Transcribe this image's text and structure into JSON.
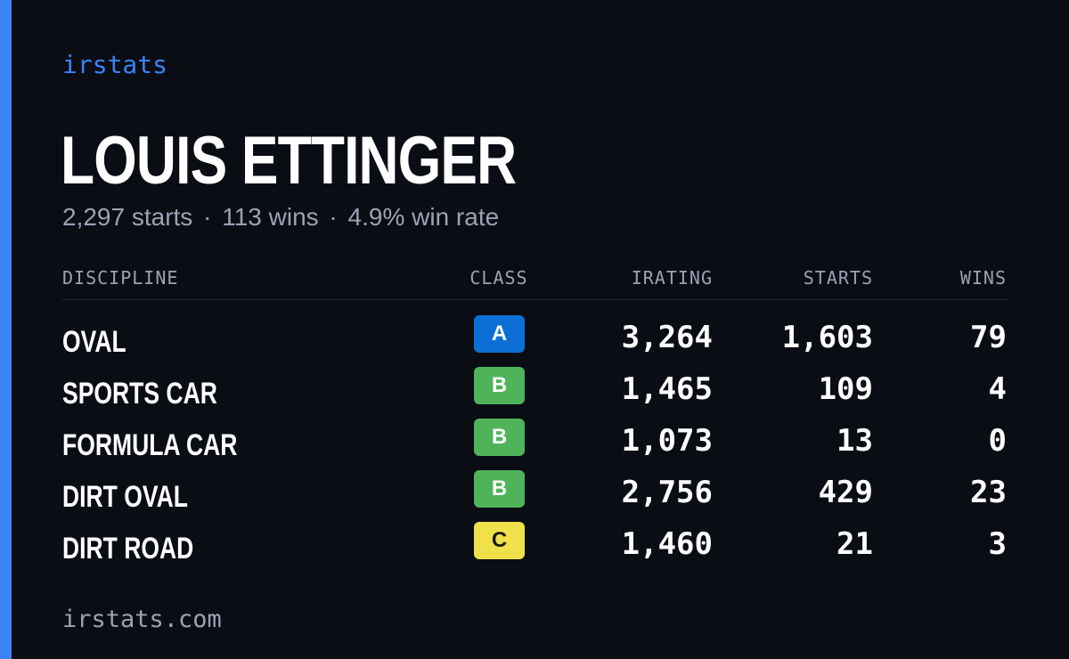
{
  "brand": "irstats",
  "driver": {
    "name": "LOUIS ETTINGER",
    "starts_summary": "2,297 starts",
    "wins_summary": "113 wins",
    "win_rate_summary": "4.9% win rate",
    "separator": "·"
  },
  "table": {
    "headers": {
      "discipline": "DISCIPLINE",
      "class": "CLASS",
      "irating": "IRATING",
      "starts": "STARTS",
      "wins": "WINS"
    },
    "rows": [
      {
        "discipline": "OVAL",
        "class": "A",
        "irating": "3,264",
        "starts": "1,603",
        "wins": "79"
      },
      {
        "discipline": "SPORTS CAR",
        "class": "B",
        "irating": "1,465",
        "starts": "109",
        "wins": "4"
      },
      {
        "discipline": "FORMULA CAR",
        "class": "B",
        "irating": "1,073",
        "starts": "13",
        "wins": "0"
      },
      {
        "discipline": "DIRT OVAL",
        "class": "B",
        "irating": "2,756",
        "starts": "429",
        "wins": "23"
      },
      {
        "discipline": "DIRT ROAD",
        "class": "C",
        "irating": "1,460",
        "starts": "21",
        "wins": "3"
      }
    ]
  },
  "class_colors": {
    "A": {
      "bg": "#0c6fd6",
      "fg": "#ffffff"
    },
    "B": {
      "bg": "#4fb35a",
      "fg": "#ffffff"
    },
    "C": {
      "bg": "#f0e14a",
      "fg": "#1a1a1a"
    }
  },
  "colors": {
    "background": "#0a0d14",
    "accent": "#3b82f6",
    "muted_text": "#9aa3b5",
    "primary_text": "#ffffff"
  },
  "footer": "irstats.com"
}
